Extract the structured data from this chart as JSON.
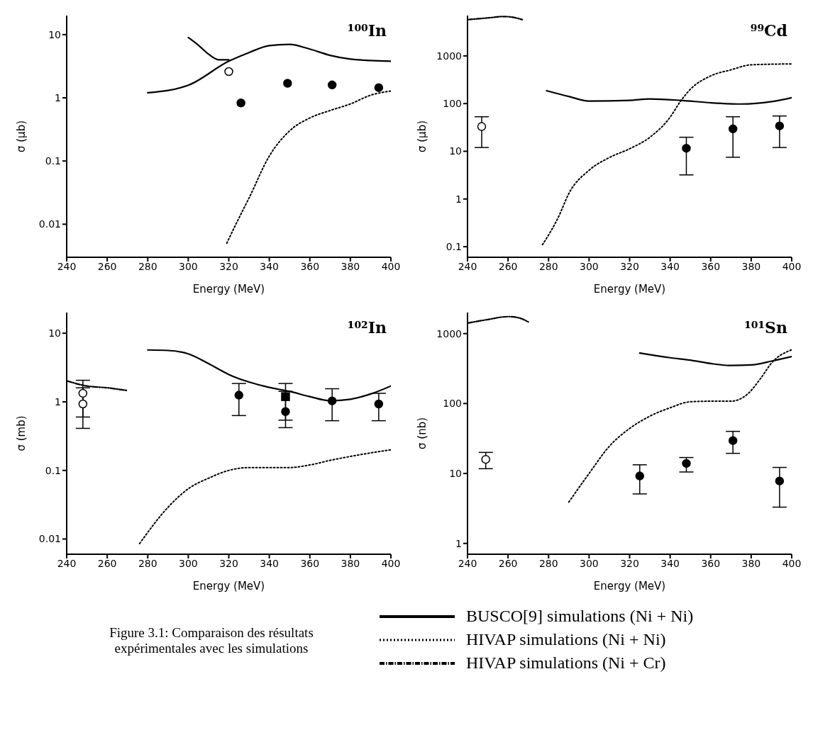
{
  "chart_data": [
    {
      "type": "line",
      "title": "¹⁰⁰In",
      "xlabel": "Energy (MeV)",
      "ylabel": "σ (μb)",
      "log": true,
      "xlim": [
        240,
        400
      ],
      "xticks": [
        240,
        260,
        280,
        300,
        320,
        340,
        360,
        380,
        400
      ],
      "ylim": [
        0.003,
        20
      ],
      "yticks": [
        0.01,
        0.1,
        1,
        10
      ],
      "legend": false,
      "series": [
        {
          "color": "#000000",
          "line_style": "solid",
          "x": [
            280,
            300,
            320,
            330,
            340,
            350,
            360,
            370,
            380,
            390,
            400
          ],
          "values": [
            1.2,
            1.58,
            3.8,
            5.2,
            6.7,
            7.0,
            5.9,
            4.7,
            4.1,
            3.9,
            3.8
          ]
        },
        {
          "type": "line",
          "color": "#000000",
          "line_style": "solid",
          "x": [
            300,
            305,
            310,
            315,
            320
          ],
          "values": [
            9,
            6.8,
            4.9,
            4.0,
            4.0
          ]
        },
        {
          "type": "line",
          "color": "#000000",
          "line_style": "dotted",
          "x": [
            319,
            325,
            330,
            340,
            350,
            360,
            370,
            380,
            390,
            400
          ],
          "values": [
            0.005,
            0.0125,
            0.026,
            0.12,
            0.3,
            0.48,
            0.63,
            0.8,
            1.1,
            1.28
          ]
        },
        {
          "type": "scatter",
          "color": "#ffffff",
          "marker": "circle",
          "x": [
            320
          ],
          "values": [
            2.6
          ]
        },
        {
          "type": "scatter",
          "color": "#000000",
          "marker": "circle",
          "x": [
            326,
            349,
            371,
            394
          ],
          "values": [
            0.83,
            1.7,
            1.6,
            1.45
          ]
        }
      ]
    },
    {
      "type": "line",
      "title": "⁹⁹Cd",
      "xlabel": "Energy (MeV)",
      "ylabel": "σ (μb)",
      "log": true,
      "xlim": [
        240,
        400
      ],
      "xticks": [
        240,
        260,
        280,
        300,
        320,
        340,
        360,
        380,
        400
      ],
      "ylim": [
        0.06,
        7000
      ],
      "yticks": [
        0.1,
        1,
        10,
        100,
        1000
      ],
      "legend": false,
      "series": [
        {
          "color": "#000000",
          "line_style": "dashed",
          "x": [
            240,
            250,
            258,
            265,
            267
          ],
          "values": [
            5750,
            6260,
            6700,
            6100,
            5750
          ]
        },
        {
          "type": "line",
          "color": "#000000",
          "line_style": "solid",
          "x": [
            279,
            290,
            300,
            320,
            330,
            345,
            360,
            375,
            390,
            400
          ],
          "values": [
            186,
            141,
            113,
            117,
            125,
            117,
            104,
            98,
            110,
            133
          ]
        },
        {
          "type": "line",
          "color": "#000000",
          "line_style": "dotted",
          "x": [
            277,
            285,
            290,
            300,
            310,
            320,
            330,
            340,
            345,
            350,
            360,
            370,
            380,
            400
          ],
          "values": [
            0.11,
            0.43,
            1.3,
            4,
            7.4,
            11.3,
            19.7,
            52,
            110,
            200,
            380,
            510,
            650,
            680
          ]
        },
        {
          "type": "scatter",
          "color": "#ffffff",
          "marker": "circle",
          "x": [
            247
          ],
          "values": [
            33
          ],
          "errors": [
            [
              12,
              53
            ]
          ]
        },
        {
          "type": "scatter",
          "color": "#000000",
          "marker": "circle",
          "x": [
            348,
            371,
            394
          ],
          "values": [
            11.6,
            29.5,
            34
          ],
          "errors": [
            [
              3.2,
              19.7
            ],
            [
              7.5,
              53
            ],
            [
              12,
              55
            ]
          ]
        }
      ]
    },
    {
      "type": "line",
      "title": "¹⁰²In",
      "xlabel": "Energy (MeV)",
      "ylabel": "σ (mb)",
      "log": true,
      "xlim": [
        240,
        400
      ],
      "xticks": [
        240,
        260,
        280,
        300,
        320,
        340,
        360,
        380,
        400
      ],
      "ylim": [
        0.006,
        20
      ],
      "yticks": [
        0.01,
        0.1,
        1,
        10
      ],
      "legend": false,
      "annotations": [
        "Figure 3.1: Comparaison des résultats expérimentales avec les simulations"
      ],
      "series": [
        {
          "color": "#000000",
          "line_style": "dashed",
          "x": [
            240,
            250,
            260,
            270
          ],
          "values": [
            2.02,
            1.7,
            1.6,
            1.46
          ]
        },
        {
          "type": "line",
          "color": "#000000",
          "line_style": "solid",
          "x": [
            280,
            290,
            300,
            310,
            320,
            330,
            340,
            350,
            360,
            370,
            380,
            390,
            400
          ],
          "values": [
            5.7,
            5.6,
            5.0,
            3.6,
            2.5,
            1.94,
            1.62,
            1.42,
            1.19,
            1.04,
            1.09,
            1.3,
            1.7
          ]
        },
        {
          "type": "line",
          "color": "#000000",
          "line_style": "dotted",
          "x": [
            276,
            290,
            300,
            310,
            320,
            330,
            350,
            360,
            370,
            380,
            400
          ],
          "values": [
            0.0086,
            0.029,
            0.054,
            0.077,
            0.1,
            0.11,
            0.11,
            0.12,
            0.14,
            0.16,
            0.2
          ]
        },
        {
          "type": "scatter",
          "color": "#ffffff",
          "marker": "circle",
          "x": [
            248,
            248
          ],
          "values": [
            1.33,
            0.93
          ],
          "errors": [
            [
              0.6,
              2.06
            ],
            [
              0.41,
              1.6
            ]
          ]
        },
        {
          "type": "scatter",
          "color": "#000000",
          "marker": "square",
          "x": [
            348
          ],
          "values": [
            1.19
          ],
          "errors": [
            [
              0.54,
              1.85
            ]
          ]
        },
        {
          "type": "scatter",
          "color": "#000000",
          "marker": "circle",
          "x": [
            325,
            348,
            371,
            394
          ],
          "values": [
            1.25,
            0.72,
            1.03,
            0.93
          ],
          "errors": [
            [
              0.63,
              1.85
            ],
            [
              0.42,
              1.42
            ],
            [
              0.53,
              1.55
            ],
            [
              0.53,
              1.33
            ]
          ]
        }
      ]
    },
    {
      "type": "line",
      "title": "¹⁰¹Sn",
      "xlabel": "Energy (MeV)",
      "ylabel": "σ (nb)",
      "log": true,
      "xlim": [
        240,
        400
      ],
      "xticks": [
        240,
        260,
        280,
        300,
        320,
        340,
        360,
        380,
        400
      ],
      "ylim": [
        0.7,
        2000
      ],
      "yticks": [
        1,
        10,
        100,
        1000
      ],
      "legend": "bottom",
      "series": [
        {
          "name": "BUSCO[9] simulations (Ni + Ni)",
          "color": "#000000",
          "line_style": "solid",
          "x": [
            325,
            340,
            350,
            360,
            370,
            380,
            390,
            400
          ],
          "values": [
            528,
            452,
            417,
            373,
            350,
            356,
            404,
            470
          ]
        },
        {
          "type": "line",
          "name": "HIVAP simulations (Ni + Ni)",
          "color": "#000000",
          "line_style": "dotted",
          "x": [
            290,
            300,
            310,
            320,
            330,
            340,
            350,
            360,
            370,
            378,
            385,
            390,
            400
          ],
          "values": [
            3.9,
            10,
            24.5,
            44,
            66,
            87,
            106,
            108,
            108,
            135,
            236,
            378,
            587
          ]
        },
        {
          "type": "line",
          "name": "HIVAP simulations (Ni + Cr)",
          "color": "#000000",
          "line_style": "dashed",
          "x": [
            240,
            250,
            260,
            265,
            270
          ],
          "values": [
            1410,
            1590,
            1750,
            1690,
            1470
          ]
        },
        {
          "type": "scatter",
          "color": "#ffffff",
          "marker": "circle",
          "x": [
            249
          ],
          "values": [
            15.9
          ],
          "errors": [
            [
              11.7,
              20
            ]
          ]
        },
        {
          "type": "scatter",
          "color": "#000000",
          "marker": "circle",
          "x": [
            325,
            348,
            371,
            394
          ],
          "values": [
            9.2,
            13.9,
            29.5,
            7.8
          ],
          "errors": [
            [
              5.1,
              13.3
            ],
            [
              10.5,
              16.9
            ],
            [
              19.4,
              40
            ],
            [
              3.3,
              12.2
            ]
          ]
        }
      ]
    }
  ]
}
